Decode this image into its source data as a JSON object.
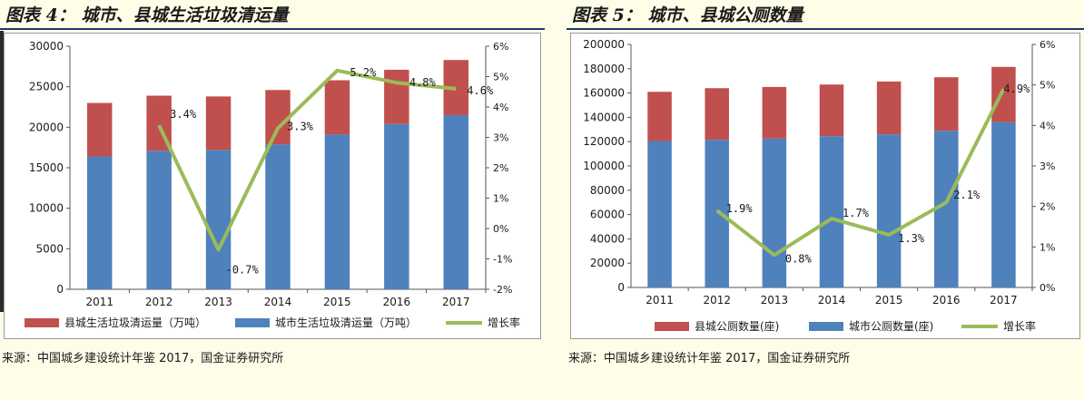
{
  "colors": {
    "county": "#c0504d",
    "city": "#4f81bd",
    "growth": "#9bbb59"
  },
  "left": {
    "title": "图表 4： 城市、县城生活垃圾清运量",
    "source": "来源：中国城乡建设统计年鉴 2017，国金证券研究所"
  },
  "right": {
    "title": "图表 5： 城市、县城公厕数量",
    "source": "来源：中国城乡建设统计年鉴 2017，国金证券研究所"
  },
  "chart_data": [
    {
      "type": "bar",
      "stacked": true,
      "categories": [
        "2011",
        "2012",
        "2013",
        "2014",
        "2015",
        "2016",
        "2017"
      ],
      "series": [
        {
          "name": "城市生活垃圾清运量（万吨）",
          "values": [
            16400,
            17100,
            17200,
            17900,
            19100,
            20400,
            21500
          ]
        },
        {
          "name": "县城生活垃圾清运量（万吨）",
          "values": [
            6600,
            6800,
            6600,
            6700,
            6700,
            6700,
            6800
          ]
        },
        {
          "name": "增长率",
          "axis": "right",
          "type": "line",
          "values": [
            null,
            3.4,
            -0.7,
            3.3,
            5.2,
            4.8,
            4.6
          ],
          "labels": [
            "",
            "3.4%",
            "-0.7%",
            "3.3%",
            "5.2%",
            "4.8%",
            "4.6%"
          ]
        }
      ],
      "ylim": [
        0,
        30000
      ],
      "yticks": [
        "0",
        "5000",
        "10000",
        "15000",
        "20000",
        "25000",
        "30000"
      ],
      "y2lim": [
        -2,
        6
      ],
      "y2ticks": [
        "-2%",
        "-1%",
        "0%",
        "1%",
        "2%",
        "3%",
        "4%",
        "5%",
        "6%"
      ],
      "legend": "bottom",
      "legend_items": [
        "县城生活垃圾清运量（万吨）",
        "城市生活垃圾清运量（万吨）",
        "增长率"
      ]
    },
    {
      "type": "bar",
      "stacked": true,
      "categories": [
        "2011",
        "2012",
        "2013",
        "2014",
        "2015",
        "2016",
        "2017"
      ],
      "series": [
        {
          "name": "城市公厕数量(座)",
          "values": [
            120500,
            121500,
            122500,
            124500,
            126000,
            129000,
            136000
          ]
        },
        {
          "name": "县城公厕数量(座)",
          "values": [
            40500,
            42500,
            42500,
            42500,
            43500,
            44000,
            45500
          ]
        },
        {
          "name": "增长率",
          "axis": "right",
          "type": "line",
          "values": [
            null,
            1.9,
            0.8,
            1.7,
            1.3,
            2.1,
            4.9
          ],
          "labels": [
            "",
            "1.9%",
            "0.8%",
            "1.7%",
            "1.3%",
            "2.1%",
            "4.9%"
          ]
        }
      ],
      "ylim": [
        0,
        200000
      ],
      "yticks": [
        "0",
        "20000",
        "40000",
        "60000",
        "80000",
        "100000",
        "120000",
        "140000",
        "160000",
        "180000",
        "200000"
      ],
      "y2lim": [
        0,
        6
      ],
      "y2ticks": [
        "0%",
        "1%",
        "2%",
        "3%",
        "4%",
        "5%",
        "6%"
      ],
      "legend": "bottom",
      "legend_items": [
        "县城公厕数量(座)",
        "城市公厕数量(座)",
        "增长率"
      ]
    }
  ]
}
